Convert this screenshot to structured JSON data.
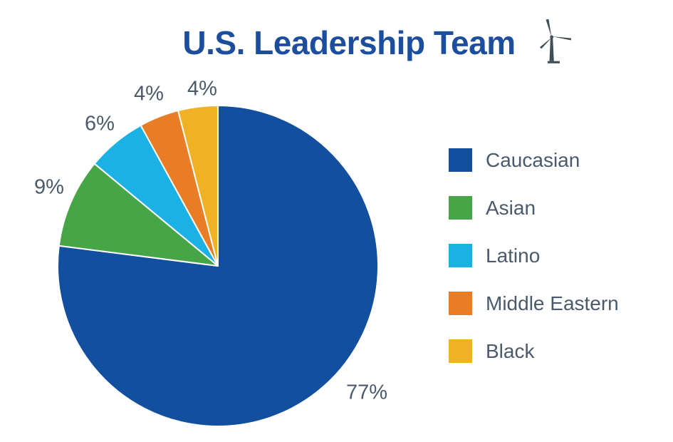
{
  "title": "U.S. Leadership Team",
  "title_color": "#1C4E9D",
  "icon": {
    "name": "wind-turbine-icon",
    "color": "#3E4F5C"
  },
  "text_color": "#4A5A6B",
  "chart_data": {
    "type": "pie",
    "title": "U.S. Leadership Team",
    "categories": [
      "Caucasian",
      "Asian",
      "Latino",
      "Middle Eastern",
      "Black"
    ],
    "values": [
      77,
      9,
      6,
      4,
      4
    ],
    "labels": [
      "77%",
      "9%",
      "6%",
      "4%",
      "4%"
    ],
    "colors": [
      "#124F9E",
      "#46A546",
      "#1CB1E5",
      "#E87D25",
      "#F1B125"
    ],
    "start_angle_deg": 0,
    "direction": "clockwise",
    "slice_border_color": "#FFFFFF",
    "legend_position": "right",
    "label_color": "#4A5A6B"
  }
}
